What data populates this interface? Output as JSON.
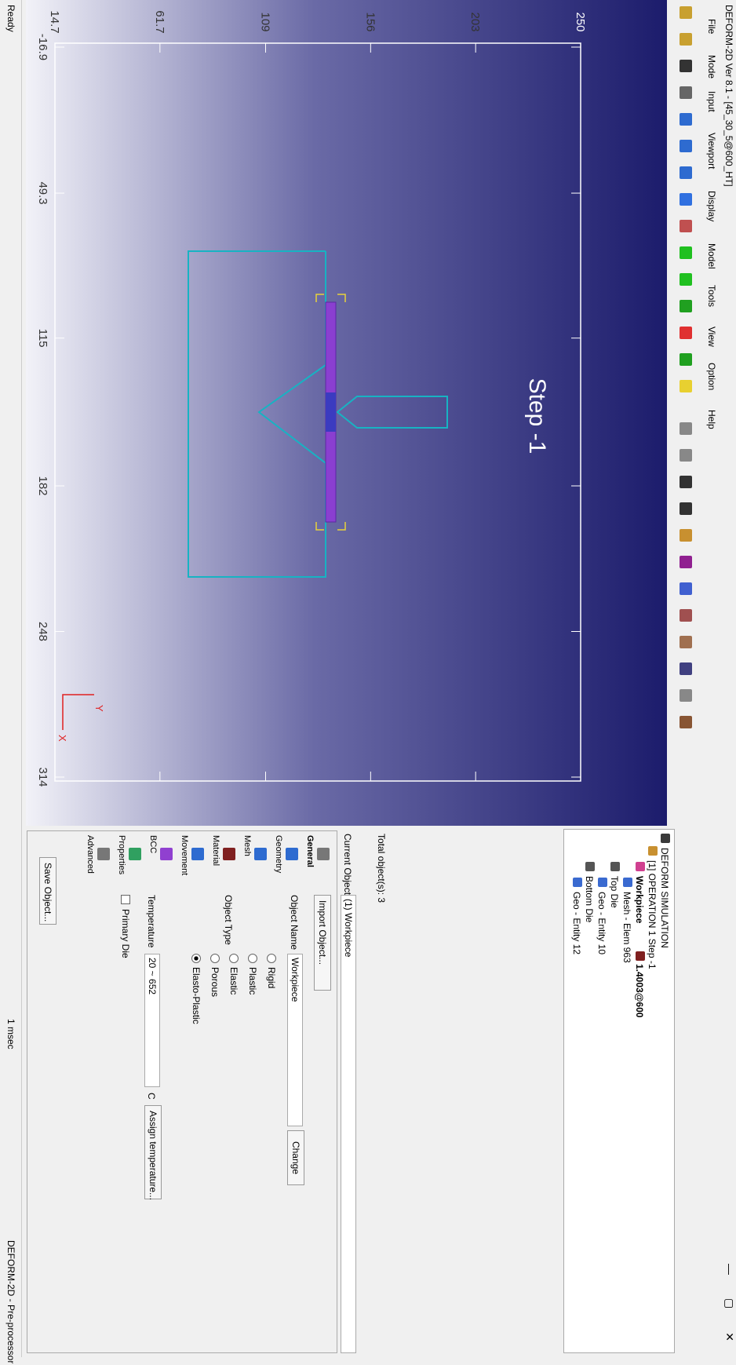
{
  "window": {
    "title": "DEFORM-2D Ver 8.1 - [45_30_5@600_HT]"
  },
  "menu": [
    "File",
    "Mode",
    "Input",
    "Viewport",
    "Display",
    "Model",
    "Tools",
    "View",
    "Option",
    "Help"
  ],
  "viewport": {
    "label": "Step -1",
    "xticks": [
      -16.9,
      49.3,
      115,
      182,
      248,
      314
    ],
    "yticks": [
      14.7,
      61.7,
      109,
      156,
      203,
      250
    ],
    "axis_labels": {
      "x": "X",
      "y": "Y"
    }
  },
  "tree": {
    "root": "DEFORM SIMULATION",
    "operation": "[1] OPERATION 1  Step -1",
    "objects": [
      {
        "name": "Workpiece",
        "material": "1.4003@600",
        "children": [
          "Mesh - Elem 963"
        ]
      },
      {
        "name": "Top Die",
        "children": [
          "Geo - Entity 10"
        ]
      },
      {
        "name": "Bottom Die",
        "children": [
          "Geo - Entity 12"
        ]
      }
    ]
  },
  "panel": {
    "total_objects": "Total object(s): 3",
    "current_object_label": "Current Object",
    "current_object": "(1) Workpiece",
    "tabs": [
      "General",
      "Geometry",
      "Mesh",
      "Material",
      "Movement",
      "BCC",
      "Properties",
      "Advanced"
    ],
    "import_button": "Import Object...",
    "object_name_label": "Object Name",
    "object_name": "Workpiece",
    "change_button": "Change",
    "object_type_label": "Object Type",
    "object_types": [
      "Rigid",
      "Plastic",
      "Elastic",
      "Porous",
      "Elasto-Plastic"
    ],
    "selected_type": "Elasto-Plastic",
    "temperature_label": "Temperature",
    "temperature": "20 ~ 652",
    "temperature_unit": "C",
    "assign_button": "Assign temperature...",
    "primary_die": "Primary Die",
    "save_button": "Save Object..."
  },
  "status": [
    "Ready",
    "1 msec",
    "DEFORM-2D - Pre-processor"
  ]
}
